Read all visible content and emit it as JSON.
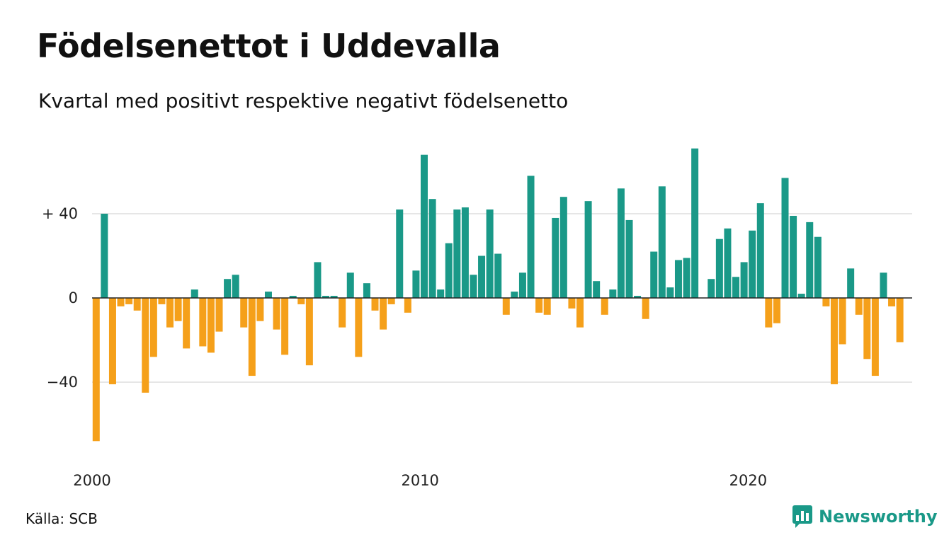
{
  "header": {
    "title": "Födelsenettot i Uddevalla",
    "subtitle": "Kvartal med positivt respektive negativt födelsenetto"
  },
  "footer": {
    "source": "Källa: SCB",
    "brand": "Newsworthy"
  },
  "colors": {
    "positive": "#1a9988",
    "negative": "#f5a01a",
    "grid": "#dddddd",
    "zero_line": "#222222",
    "brand": "#1a9988"
  },
  "chart_data": {
    "type": "bar",
    "title": "Födelsenettot i Uddevalla",
    "subtitle": "Kvartal med positivt respektive negativt födelsenetto",
    "x_start": "2000 Q1",
    "x_ticks": [
      {
        "label": "2000",
        "quarter": "2000 Q1"
      },
      {
        "label": "2010",
        "quarter": "2010 Q1"
      },
      {
        "label": "2020",
        "quarter": "2020 Q1"
      }
    ],
    "y_ticks": [
      {
        "label": "+ 40",
        "value": 40
      },
      {
        "label": "0",
        "value": 0
      },
      {
        "label": "−40",
        "value": -40
      }
    ],
    "ylim": [
      -68,
      72
    ],
    "grid": true,
    "values": [
      -68,
      40,
      -41,
      -4,
      -3,
      -6,
      -45,
      -28,
      -3,
      -14,
      -11,
      -24,
      4,
      -23,
      -26,
      -16,
      9,
      11,
      -14,
      -37,
      -11,
      3,
      -15,
      -27,
      1,
      -3,
      -32,
      17,
      1,
      1,
      -14,
      12,
      -28,
      7,
      -6,
      -15,
      -3,
      42,
      -7,
      13,
      68,
      47,
      4,
      26,
      42,
      43,
      11,
      20,
      42,
      21,
      -8,
      3,
      12,
      58,
      -7,
      -8,
      38,
      48,
      -5,
      -14,
      46,
      8,
      -8,
      4,
      52,
      37,
      1,
      -10,
      22,
      53,
      5,
      18,
      19,
      71,
      0,
      9,
      28,
      33,
      10,
      17,
      32,
      45,
      -14,
      -12,
      57,
      39,
      2,
      36,
      29,
      -4,
      -41,
      -22,
      14,
      -8,
      -29,
      -37,
      12,
      -4,
      -21
    ]
  }
}
